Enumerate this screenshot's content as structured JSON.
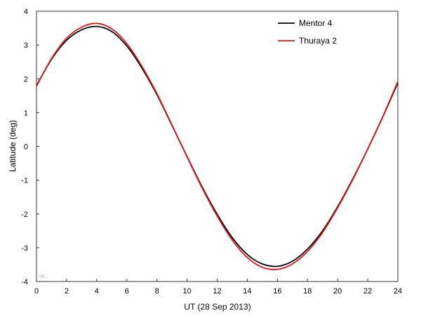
{
  "chart_data": {
    "type": "line",
    "title": "",
    "xlabel": "UT (28 Sep 2013)",
    "ylabel": "Latitude  (deg)",
    "xlim": [
      0,
      24
    ],
    "ylim": [
      -4,
      4
    ],
    "xticks": [
      0,
      2,
      4,
      6,
      8,
      10,
      12,
      14,
      16,
      18,
      20,
      22,
      24
    ],
    "yticks": [
      -4,
      -3,
      -2,
      -1,
      0,
      1,
      2,
      3,
      4
    ],
    "grid": false,
    "legend_position": "top-right",
    "watermark": "ML",
    "series": [
      {
        "name": "Mentor 4",
        "color": "#000000",
        "x": [
          0,
          1,
          2,
          3,
          4,
          5,
          6,
          7,
          8,
          9,
          10,
          11,
          12,
          13,
          14,
          15,
          16,
          17,
          18,
          19,
          20,
          21,
          22,
          23,
          24
        ],
        "y": [
          1.8,
          2.58,
          3.14,
          3.45,
          3.55,
          3.4,
          2.97,
          2.32,
          1.53,
          0.62,
          -0.3,
          -1.2,
          -2.01,
          -2.7,
          -3.2,
          -3.48,
          -3.55,
          -3.4,
          -3.04,
          -2.5,
          -1.79,
          -0.97,
          -0.08,
          0.87,
          1.88
        ]
      },
      {
        "name": "Thuraya 2",
        "color": "#e0141e",
        "x": [
          0,
          1,
          2,
          3,
          4,
          5,
          6,
          7,
          8,
          9,
          10,
          11,
          12,
          13,
          14,
          15,
          16,
          17,
          18,
          19,
          20,
          21,
          22,
          23,
          24
        ],
        "y": [
          1.78,
          2.6,
          3.2,
          3.53,
          3.64,
          3.48,
          3.04,
          2.37,
          1.56,
          0.63,
          -0.31,
          -1.23,
          -2.06,
          -2.77,
          -3.29,
          -3.58,
          -3.64,
          -3.48,
          -3.11,
          -2.55,
          -1.82,
          -0.99,
          -0.08,
          0.88,
          1.92
        ]
      }
    ]
  }
}
